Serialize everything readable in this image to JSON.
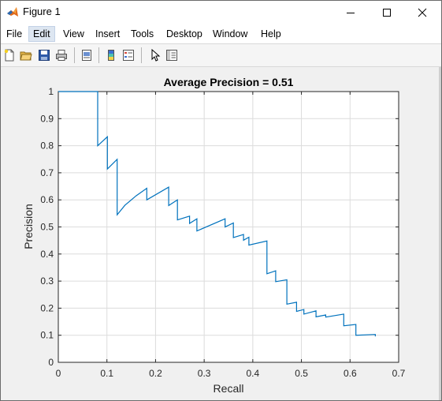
{
  "window": {
    "title": "Figure 1",
    "controls": [
      "minimize",
      "maximize",
      "close"
    ]
  },
  "menu": [
    {
      "label": "File"
    },
    {
      "label": "Edit"
    },
    {
      "label": "View"
    },
    {
      "label": "Insert"
    },
    {
      "label": "Tools"
    },
    {
      "label": "Desktop"
    },
    {
      "label": "Window"
    },
    {
      "label": "Help"
    }
  ],
  "toolbar": {
    "icons": [
      "new-figure-icon",
      "open-file-icon",
      "save-icon",
      "print-icon",
      "print-preview-icon",
      "colorbar-icon",
      "legend-icon",
      "pointer-icon",
      "property-editor-icon"
    ]
  },
  "colors": {
    "line": "#0072bd",
    "axes_bg": "#ffffff",
    "figure_bg": "#f0f0f0",
    "grid": "#dcdcdc"
  },
  "chart_data": {
    "type": "line",
    "title": "Average Precision = 0.51",
    "xlabel": "Recall",
    "ylabel": "Precision",
    "xlim": [
      0,
      0.7
    ],
    "ylim": [
      0,
      1
    ],
    "xticks": [
      "0",
      "0.1",
      "0.2",
      "0.3",
      "0.4",
      "0.5",
      "0.6",
      "0.7"
    ],
    "yticks": [
      "0",
      "0.1",
      "0.2",
      "0.3",
      "0.4",
      "0.5",
      "0.6",
      "0.7",
      "0.8",
      "0.9",
      "1"
    ],
    "grid": true,
    "series": [
      {
        "x": [
          0.0,
          0.081,
          0.081,
          0.101,
          0.101,
          0.121,
          0.121,
          0.137,
          0.16,
          0.182,
          0.182,
          0.227,
          0.227,
          0.245,
          0.245,
          0.27,
          0.27,
          0.285,
          0.285,
          0.343,
          0.343,
          0.36,
          0.36,
          0.381,
          0.381,
          0.392,
          0.392,
          0.429,
          0.429,
          0.447,
          0.447,
          0.47,
          0.47,
          0.49,
          0.49,
          0.505,
          0.505,
          0.53,
          0.53,
          0.55,
          0.55,
          0.587,
          0.587,
          0.612,
          0.612,
          0.652,
          0.652
        ],
        "y": [
          1.0,
          1.0,
          0.8,
          0.833,
          0.714,
          0.75,
          0.545,
          0.58,
          0.615,
          0.643,
          0.6,
          0.647,
          0.579,
          0.6,
          0.526,
          0.54,
          0.513,
          0.53,
          0.485,
          0.53,
          0.5,
          0.515,
          0.461,
          0.472,
          0.451,
          0.462,
          0.433,
          0.448,
          0.327,
          0.338,
          0.298,
          0.305,
          0.215,
          0.222,
          0.188,
          0.195,
          0.178,
          0.19,
          0.168,
          0.175,
          0.167,
          0.178,
          0.135,
          0.14,
          0.1,
          0.103,
          0.096
        ]
      }
    ]
  }
}
